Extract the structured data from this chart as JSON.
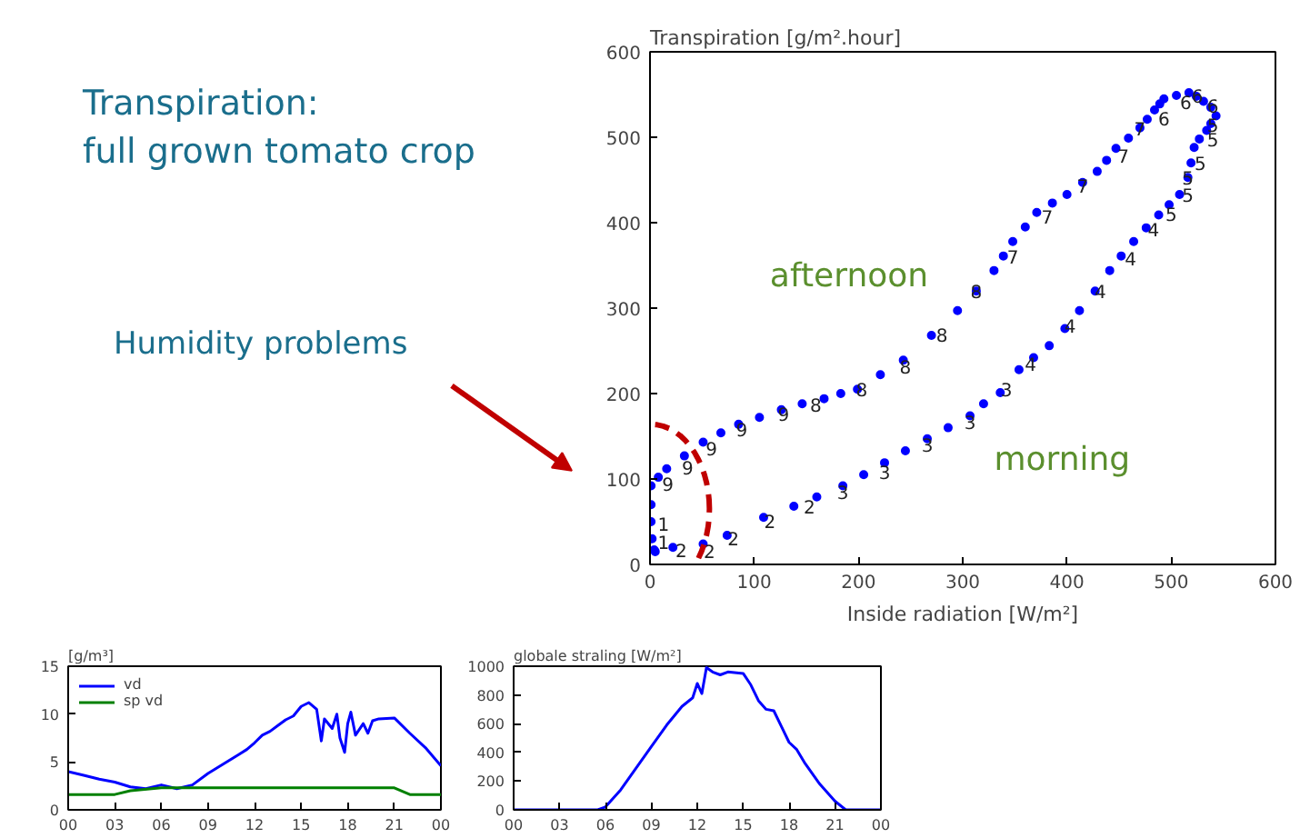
{
  "chart_data": [
    {
      "type": "scatter",
      "title": "Transpiration:\nfull grown tomato crop",
      "ylabel": "Transpiration [g/m².hour]",
      "xlabel": "Inside radiation [W/m²]",
      "x": [
        5,
        4,
        22,
        51,
        74,
        109,
        138,
        160,
        185,
        205,
        225,
        245,
        266,
        286,
        307,
        320,
        336,
        354,
        368,
        383,
        398,
        412,
        427,
        441,
        452,
        464,
        476,
        488,
        498,
        508,
        516,
        519,
        522,
        527,
        534,
        538,
        543,
        538,
        531,
        524,
        517,
        505,
        493,
        489,
        484,
        477,
        470,
        459,
        447,
        438,
        429,
        415,
        400,
        386,
        371,
        360,
        348,
        339,
        330,
        313,
        295,
        270,
        243,
        221,
        199,
        183,
        167,
        146,
        126,
        105,
        85,
        68,
        51,
        33,
        16,
        8,
        1,
        1,
        1,
        2
      ],
      "series": [
        {
          "color": "#0000ff",
          "values": [
            15,
            17,
            20,
            24,
            34,
            55,
            68,
            79,
            92,
            105,
            119,
            133,
            147,
            160,
            174,
            188,
            201,
            228,
            242,
            256,
            276,
            297,
            320,
            344,
            361,
            378,
            394,
            409,
            421,
            433,
            453,
            470,
            488,
            498,
            508,
            516,
            525,
            535,
            542,
            548,
            552,
            549,
            545,
            539,
            532,
            521,
            511,
            499,
            487,
            473,
            460,
            447,
            433,
            423,
            412,
            395,
            378,
            361,
            344,
            320,
            297,
            268,
            239,
            222,
            205,
            200,
            194,
            188,
            181,
            172,
            164,
            154,
            143,
            127,
            112,
            102,
            92,
            70,
            50,
            30
          ]
        }
      ],
      "marker": "circle",
      "xlim": [
        0,
        600
      ],
      "ylim": [
        0,
        600
      ],
      "xticks": [
        0,
        100,
        200,
        300,
        400,
        500,
        600
      ],
      "yticks": [
        0,
        100,
        200,
        300,
        400,
        500,
        600
      ],
      "grid": false,
      "annotations": [
        "Humidity problems",
        "afternoon",
        "morning",
        {
          "text": "1",
          "x": 13,
          "y": 48
        },
        {
          "text": "1",
          "x": 13,
          "y": 27
        },
        {
          "text": "2",
          "x": 30,
          "y": 17
        },
        {
          "text": "2",
          "x": 57,
          "y": 16
        },
        {
          "text": "2",
          "x": 80,
          "y": 31
        },
        {
          "text": "2",
          "x": 115,
          "y": 51
        },
        {
          "text": "2",
          "x": 153,
          "y": 68
        },
        {
          "text": "3",
          "x": 185,
          "y": 85
        },
        {
          "text": "3",
          "x": 225,
          "y": 109
        },
        {
          "text": "3",
          "x": 266,
          "y": 140
        },
        {
          "text": "3",
          "x": 307,
          "y": 167
        },
        {
          "text": "3",
          "x": 342,
          "y": 205
        },
        {
          "text": "4",
          "x": 365,
          "y": 235
        },
        {
          "text": "4",
          "x": 403,
          "y": 280
        },
        {
          "text": "4",
          "x": 432,
          "y": 320
        },
        {
          "text": "4",
          "x": 461,
          "y": 358
        },
        {
          "text": "4",
          "x": 483,
          "y": 393
        },
        {
          "text": "5",
          "x": 500,
          "y": 411
        },
        {
          "text": "5",
          "x": 516,
          "y": 433
        },
        {
          "text": "5",
          "x": 516,
          "y": 453
        },
        {
          "text": "5",
          "x": 528,
          "y": 470
        },
        {
          "text": "5",
          "x": 540,
          "y": 498
        },
        {
          "text": "5",
          "x": 540,
          "y": 515
        },
        {
          "text": "6",
          "x": 540,
          "y": 537
        },
        {
          "text": "6",
          "x": 525,
          "y": 549
        },
        {
          "text": "6",
          "x": 514,
          "y": 542
        },
        {
          "text": "6",
          "x": 493,
          "y": 522
        },
        {
          "text": "7",
          "x": 470,
          "y": 511
        },
        {
          "text": "7",
          "x": 454,
          "y": 479
        },
        {
          "text": "7",
          "x": 415,
          "y": 444
        },
        {
          "text": "7",
          "x": 381,
          "y": 407
        },
        {
          "text": "7",
          "x": 348,
          "y": 361
        },
        {
          "text": "8",
          "x": 313,
          "y": 320
        },
        {
          "text": "8",
          "x": 280,
          "y": 269
        },
        {
          "text": "8",
          "x": 245,
          "y": 232
        },
        {
          "text": "8",
          "x": 203,
          "y": 205
        },
        {
          "text": "8",
          "x": 159,
          "y": 187
        },
        {
          "text": "9",
          "x": 128,
          "y": 177
        },
        {
          "text": "9",
          "x": 88,
          "y": 158
        },
        {
          "text": "9",
          "x": 59,
          "y": 136
        },
        {
          "text": "9",
          "x": 36,
          "y": 114
        },
        {
          "text": "9",
          "x": 17,
          "y": 95
        }
      ]
    },
    {
      "type": "line",
      "ylabel": "[g/m³]",
      "xlim": [
        0,
        24
      ],
      "ylim": [
        0,
        15
      ],
      "yticks": [
        0,
        5,
        10,
        15
      ],
      "xticks": [
        {
          "value": 0,
          "label": "00"
        },
        {
          "value": 3,
          "label": "03"
        },
        {
          "value": 6,
          "label": "06"
        },
        {
          "value": 9,
          "label": "09"
        },
        {
          "value": 12,
          "label": "12"
        },
        {
          "value": 15,
          "label": "15"
        },
        {
          "value": 18,
          "label": "18"
        },
        {
          "value": 21,
          "label": "21"
        },
        {
          "value": 24,
          "label": "00"
        }
      ],
      "legend": "top left",
      "grid": false,
      "series": [
        {
          "name": "vd",
          "color": "#0000ff",
          "x": [
            0,
            1,
            2,
            3,
            4,
            5,
            6,
            7,
            8,
            9,
            10,
            11,
            11.5,
            12,
            12.5,
            13,
            13.5,
            14,
            14.5,
            15,
            15.5,
            16,
            16.3,
            16.5,
            17,
            17.3,
            17.5,
            17.8,
            18,
            18.2,
            18.5,
            19,
            19.3,
            19.6,
            20,
            21,
            22,
            23,
            24
          ],
          "values": [
            4.0,
            3.6,
            3.2,
            2.9,
            2.4,
            2.2,
            2.6,
            2.2,
            2.6,
            3.8,
            4.8,
            5.8,
            6.3,
            7.0,
            7.8,
            8.2,
            8.8,
            9.4,
            9.8,
            10.8,
            11.2,
            10.5,
            7.2,
            9.5,
            8.5,
            10.0,
            7.5,
            6.0,
            9.0,
            10.2,
            7.8,
            9.0,
            8.0,
            9.3,
            9.5,
            9.6,
            8.0,
            6.5,
            4.6
          ]
        },
        {
          "name": "sp vd",
          "color": "#008000",
          "x": [
            0,
            3,
            4,
            6,
            9,
            21,
            22,
            24
          ],
          "values": [
            1.6,
            1.6,
            2.0,
            2.3,
            2.3,
            2.3,
            1.6,
            1.6
          ]
        }
      ]
    },
    {
      "type": "line",
      "ylabel": "globale straling [W/m²]",
      "xlim": [
        0,
        24
      ],
      "ylim": [
        0,
        1000
      ],
      "yticks": [
        0,
        200,
        400,
        600,
        800,
        1000
      ],
      "xticks": [
        {
          "value": 0,
          "label": "00"
        },
        {
          "value": 3,
          "label": "03"
        },
        {
          "value": 6,
          "label": "06"
        },
        {
          "value": 9,
          "label": "09"
        },
        {
          "value": 12,
          "label": "12"
        },
        {
          "value": 15,
          "label": "15"
        },
        {
          "value": 18,
          "label": "18"
        },
        {
          "value": 21,
          "label": "21"
        },
        {
          "value": 24,
          "label": "00"
        }
      ],
      "grid": false,
      "series": [
        {
          "color": "#0000ff",
          "x": [
            0,
            5.5,
            6,
            7,
            8,
            9,
            10,
            11,
            11.7,
            12,
            12.3,
            12.6,
            13,
            13.5,
            14,
            15,
            15.5,
            16,
            16.5,
            17,
            17.5,
            18,
            18.5,
            19,
            20,
            21,
            21.7,
            24
          ],
          "values": [
            0,
            0,
            20,
            140,
            290,
            440,
            590,
            720,
            780,
            880,
            810,
            990,
            960,
            940,
            960,
            950,
            870,
            760,
            700,
            690,
            580,
            470,
            420,
            330,
            180,
            60,
            0,
            0
          ]
        }
      ]
    }
  ]
}
